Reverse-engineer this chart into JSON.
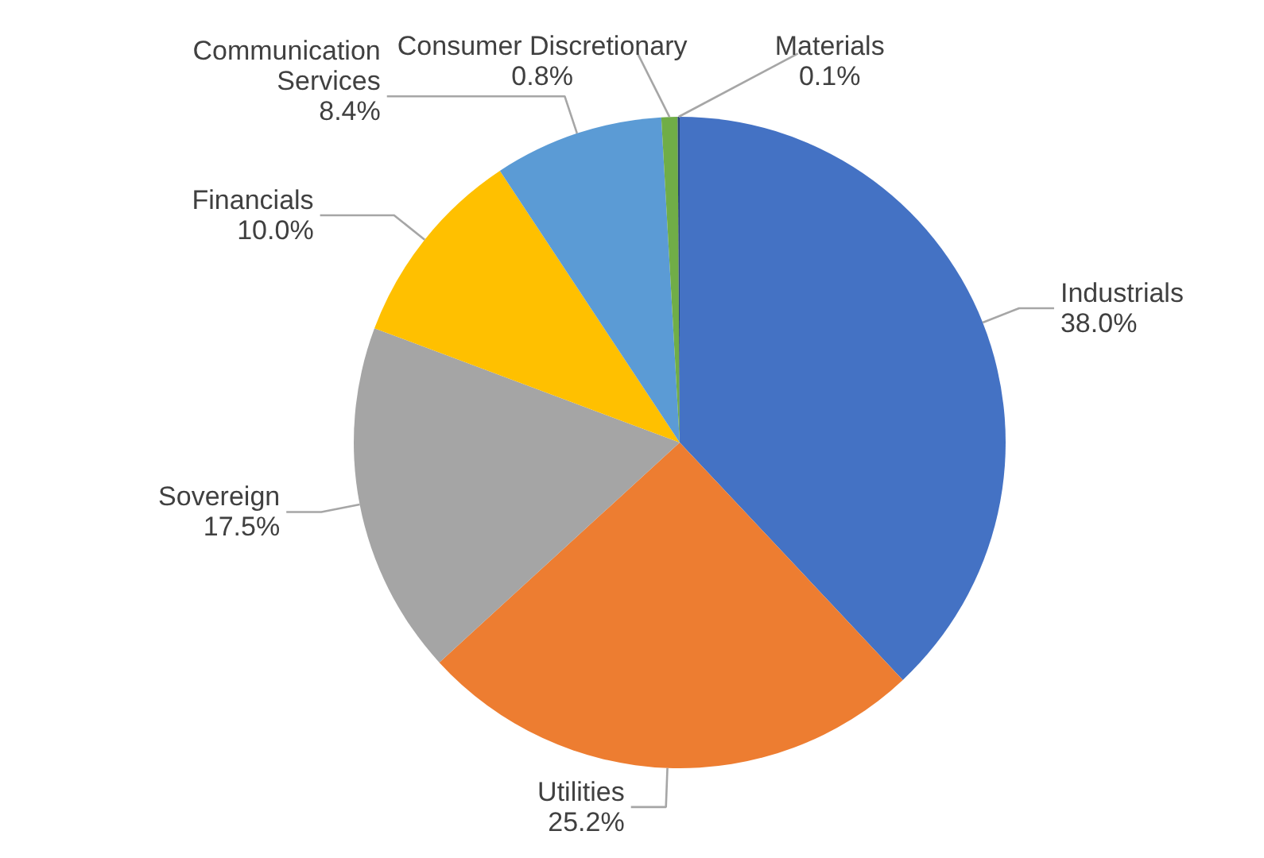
{
  "chart_data": {
    "type": "pie",
    "categories": [
      "Industrials",
      "Utilities",
      "Sovereign",
      "Financials",
      "Communication Services",
      "Consumer Discretionary",
      "Materials"
    ],
    "values": [
      38.0,
      25.2,
      17.5,
      10.0,
      8.4,
      0.8,
      0.1
    ],
    "value_labels": [
      "38.0%",
      "25.2%",
      "17.5%",
      "10.0%",
      "8.4%",
      "0.8%",
      "0.1%"
    ],
    "colors": [
      "#4472c4",
      "#ed7d31",
      "#a5a5a5",
      "#ffc000",
      "#5b9bd5",
      "#70ad47",
      "#264478"
    ]
  }
}
